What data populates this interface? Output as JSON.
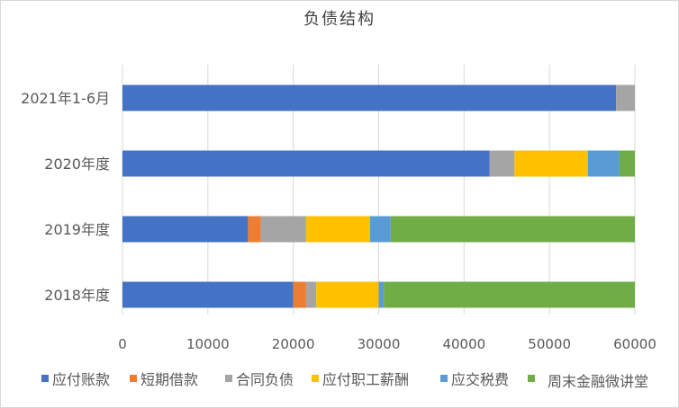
{
  "chart_data": {
    "type": "bar",
    "orientation": "horizontal",
    "stacked": true,
    "title": "负债结构",
    "categories": [
      "2021年1-6月",
      "2020年度",
      "2019年度",
      "2018年度"
    ],
    "xlim": [
      0,
      60000
    ],
    "x_ticks": [
      0,
      10000,
      20000,
      30000,
      40000,
      50000,
      60000
    ],
    "grid": "vertical",
    "legend_position": "bottom",
    "series": [
      {
        "name": "应付账款",
        "color": "#4472C4",
        "values": [
          57800,
          43000,
          14700,
          20000
        ]
      },
      {
        "name": "短期借款",
        "color": "#ED7D31",
        "values": [
          0,
          0,
          1500,
          1500
        ]
      },
      {
        "name": "合同负债",
        "color": "#A5A5A5",
        "values": [
          2200,
          2900,
          5300,
          1200
        ]
      },
      {
        "name": "应付职工薪酬",
        "color": "#FFC000",
        "values": [
          0,
          8600,
          7500,
          7300
        ]
      },
      {
        "name": "应交税费",
        "color": "#5B9BD5",
        "values": [
          0,
          3700,
          2400,
          600
        ]
      },
      {
        "name": "",
        "color": "#70AD47",
        "values": [
          0,
          1800,
          28600,
          29400
        ]
      }
    ]
  },
  "watermark": "周末金融微讲堂"
}
